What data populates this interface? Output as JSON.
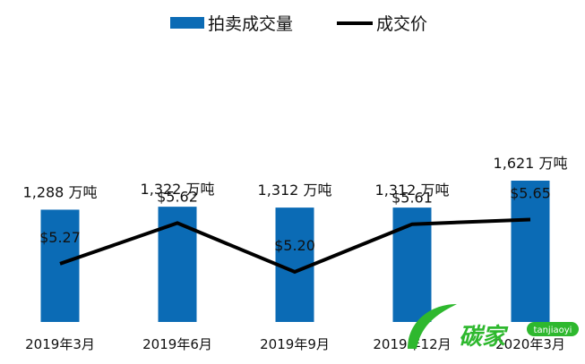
{
  "chart_data": {
    "type": "bar",
    "categories": [
      "2019年3月",
      "2019年6月",
      "2019年9月",
      "2019年12月",
      "2020年3月"
    ],
    "series": [
      {
        "name": "拍卖成交量",
        "type": "bar",
        "values": [
          1288,
          1322,
          1312,
          1312,
          1621
        ],
        "labels": [
          "1,288 万吨",
          "1,322 万吨",
          "1,312 万吨",
          "1,312 万吨",
          "1,621 万吨"
        ],
        "color": "#0B6BB5"
      },
      {
        "name": "成交价",
        "type": "line",
        "values": [
          5.27,
          5.62,
          5.2,
          5.61,
          5.65
        ],
        "labels": [
          "$5.27",
          "$5.62",
          "$5.20",
          "$5.61",
          "$5.65"
        ],
        "color": "#000000"
      }
    ],
    "legend_position": "top-center",
    "grid": false
  },
  "watermark": {
    "text": "碳家",
    "subtext": "tanjiaoyi",
    "color": "#2EB82E"
  }
}
